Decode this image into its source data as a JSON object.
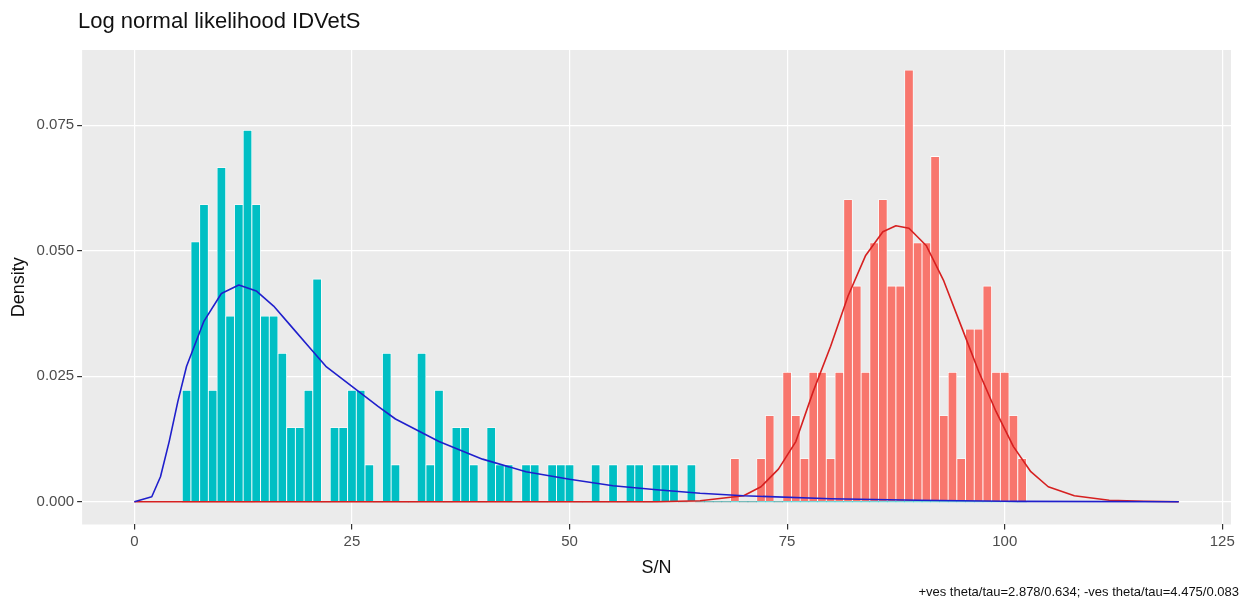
{
  "chart_data": {
    "type": "histogram",
    "title": "Log normal likelihood IDVetS",
    "xlabel": "S/N",
    "ylabel": "Density",
    "bins": [
      5.5,
      6.5,
      7.5,
      8.5,
      9.5,
      10.5,
      11.5,
      12.5,
      13.5,
      14.5,
      15.5,
      16.5,
      17.5,
      18.5,
      19.5,
      20.5,
      21.5,
      22.5,
      23.5,
      24.5,
      25.5,
      26.5,
      27.5,
      28.5,
      29.5,
      30.5,
      31.5,
      32.5,
      33.5,
      34.5,
      35.5,
      36.5,
      37.5,
      38.5,
      39.5,
      40.5,
      41.5,
      42.5,
      43.5,
      44.5,
      45.5,
      46.5,
      47.5,
      48.5,
      49.5,
      50.5,
      51.5,
      52.5,
      53.5,
      54.5,
      55.5,
      56.5,
      57.5,
      58.5,
      59.5,
      60.5,
      61.5,
      62.5,
      63.5,
      64.5,
      65.5,
      66.5,
      67.5,
      68.5,
      69.5,
      70.5,
      71.5,
      72.5,
      73.5,
      74.5,
      75.5,
      76.5,
      77.5,
      78.5,
      79.5,
      80.5,
      81.5,
      82.5,
      83.5,
      84.5,
      85.5,
      86.5,
      87.5,
      88.5,
      89.5,
      90.5,
      91.5,
      92.5,
      93.5,
      94.5,
      95.5,
      96.5,
      97.5,
      98.5,
      99.5,
      100.5,
      101.5,
      102.5
    ],
    "series": [
      {
        "color": "#00bfc4",
        "values": [
          0.0222,
          0.0518,
          0.0592,
          0.0222,
          0.0666,
          0.037,
          0.0592,
          0.074,
          0.0592,
          0.037,
          0.037,
          0.0296,
          0.0148,
          0.0148,
          0.0222,
          0.0444,
          0,
          0.0148,
          0.0148,
          0.0222,
          0.0222,
          0.0074,
          0,
          0.0296,
          0.0074,
          0,
          0,
          0.0296,
          0.0074,
          0.0222,
          0,
          0.0148,
          0.0148,
          0.0074,
          0,
          0.0148,
          0.0074,
          0.0074,
          0,
          0.0074,
          0.0074,
          0,
          0.0074,
          0.0074,
          0.0074,
          0,
          0,
          0.0074,
          0,
          0.0074,
          0,
          0.0074,
          0.0074,
          0,
          0.0074,
          0.0074,
          0.0074,
          0,
          0.0074,
          0,
          0,
          0,
          0,
          0,
          0,
          0,
          0,
          0,
          0,
          0,
          0,
          0,
          0,
          0,
          0,
          0,
          0,
          0,
          0,
          0,
          0,
          0,
          0,
          0,
          0,
          0,
          0,
          0,
          0,
          0,
          0,
          0,
          0,
          0,
          0,
          0,
          0
        ]
      },
      {
        "color": "#f8766d",
        "values": [
          0,
          0,
          0,
          0,
          0,
          0,
          0,
          0,
          0,
          0,
          0,
          0,
          0,
          0,
          0,
          0,
          0,
          0,
          0,
          0,
          0,
          0,
          0,
          0,
          0,
          0,
          0,
          0,
          0,
          0,
          0,
          0,
          0,
          0,
          0,
          0,
          0,
          0,
          0,
          0,
          0,
          0,
          0,
          0,
          0,
          0,
          0,
          0,
          0,
          0,
          0,
          0,
          0,
          0,
          0,
          0,
          0,
          0,
          0,
          0,
          0,
          0,
          0,
          0.0086,
          0,
          0,
          0.0086,
          0.0172,
          0,
          0.0258,
          0.0172,
          0.0086,
          0.0258,
          0.0258,
          0.0086,
          0.0258,
          0.0602,
          0.043,
          0.0258,
          0.0516,
          0.0602,
          0.043,
          0.043,
          0.086,
          0.0516,
          0.0516,
          0.0688,
          0.0172,
          0.0258,
          0.0086,
          0.0344,
          0.0344,
          0.043,
          0.0258,
          0.0258,
          0.0172,
          0.0086
        ]
      },
      {
        "type": "line",
        "color": "#1f1fcc",
        "x": [
          0,
          2,
          3,
          4,
          5,
          6,
          8,
          10,
          12,
          14,
          16,
          18,
          20,
          22,
          25,
          28,
          30,
          35,
          40,
          45,
          50,
          55,
          60,
          65,
          70,
          80,
          90,
          100,
          120
        ],
        "values": [
          0,
          0.001,
          0.005,
          0.012,
          0.02,
          0.027,
          0.036,
          0.0415,
          0.0432,
          0.042,
          0.039,
          0.035,
          0.031,
          0.027,
          0.023,
          0.019,
          0.0165,
          0.012,
          0.0085,
          0.006,
          0.0045,
          0.0032,
          0.0024,
          0.0017,
          0.0012,
          0.0006,
          0.0003,
          0.0001,
          0
        ]
      },
      {
        "type": "line",
        "color": "#d62020",
        "x": [
          0,
          60,
          65,
          70,
          72,
          74,
          76,
          78,
          80,
          82,
          84,
          86,
          87.5,
          89,
          91,
          93,
          95,
          97,
          99,
          101,
          103,
          105,
          108,
          112,
          116,
          120
        ],
        "values": [
          0,
          0,
          0.0002,
          0.0012,
          0.003,
          0.0065,
          0.012,
          0.022,
          0.031,
          0.041,
          0.049,
          0.0538,
          0.055,
          0.0545,
          0.051,
          0.044,
          0.035,
          0.026,
          0.018,
          0.011,
          0.006,
          0.003,
          0.0012,
          0.0003,
          0.0001,
          0
        ]
      }
    ],
    "xlim": [
      -6,
      126
    ],
    "xticks": [
      0,
      25,
      50,
      75,
      100,
      125
    ],
    "ylim": [
      -0.0045,
      0.09
    ],
    "yticks": [
      {
        "value": 0,
        "label": "0.000"
      },
      {
        "value": 0.025,
        "label": "0.025"
      },
      {
        "value": 0.05,
        "label": "0.050"
      },
      {
        "value": 0.075,
        "label": "0.075"
      }
    ],
    "grid": true,
    "annotations": [
      "+ves theta/tau=2.878/0.634; -ves theta/tau=4.475/0.083"
    ]
  }
}
